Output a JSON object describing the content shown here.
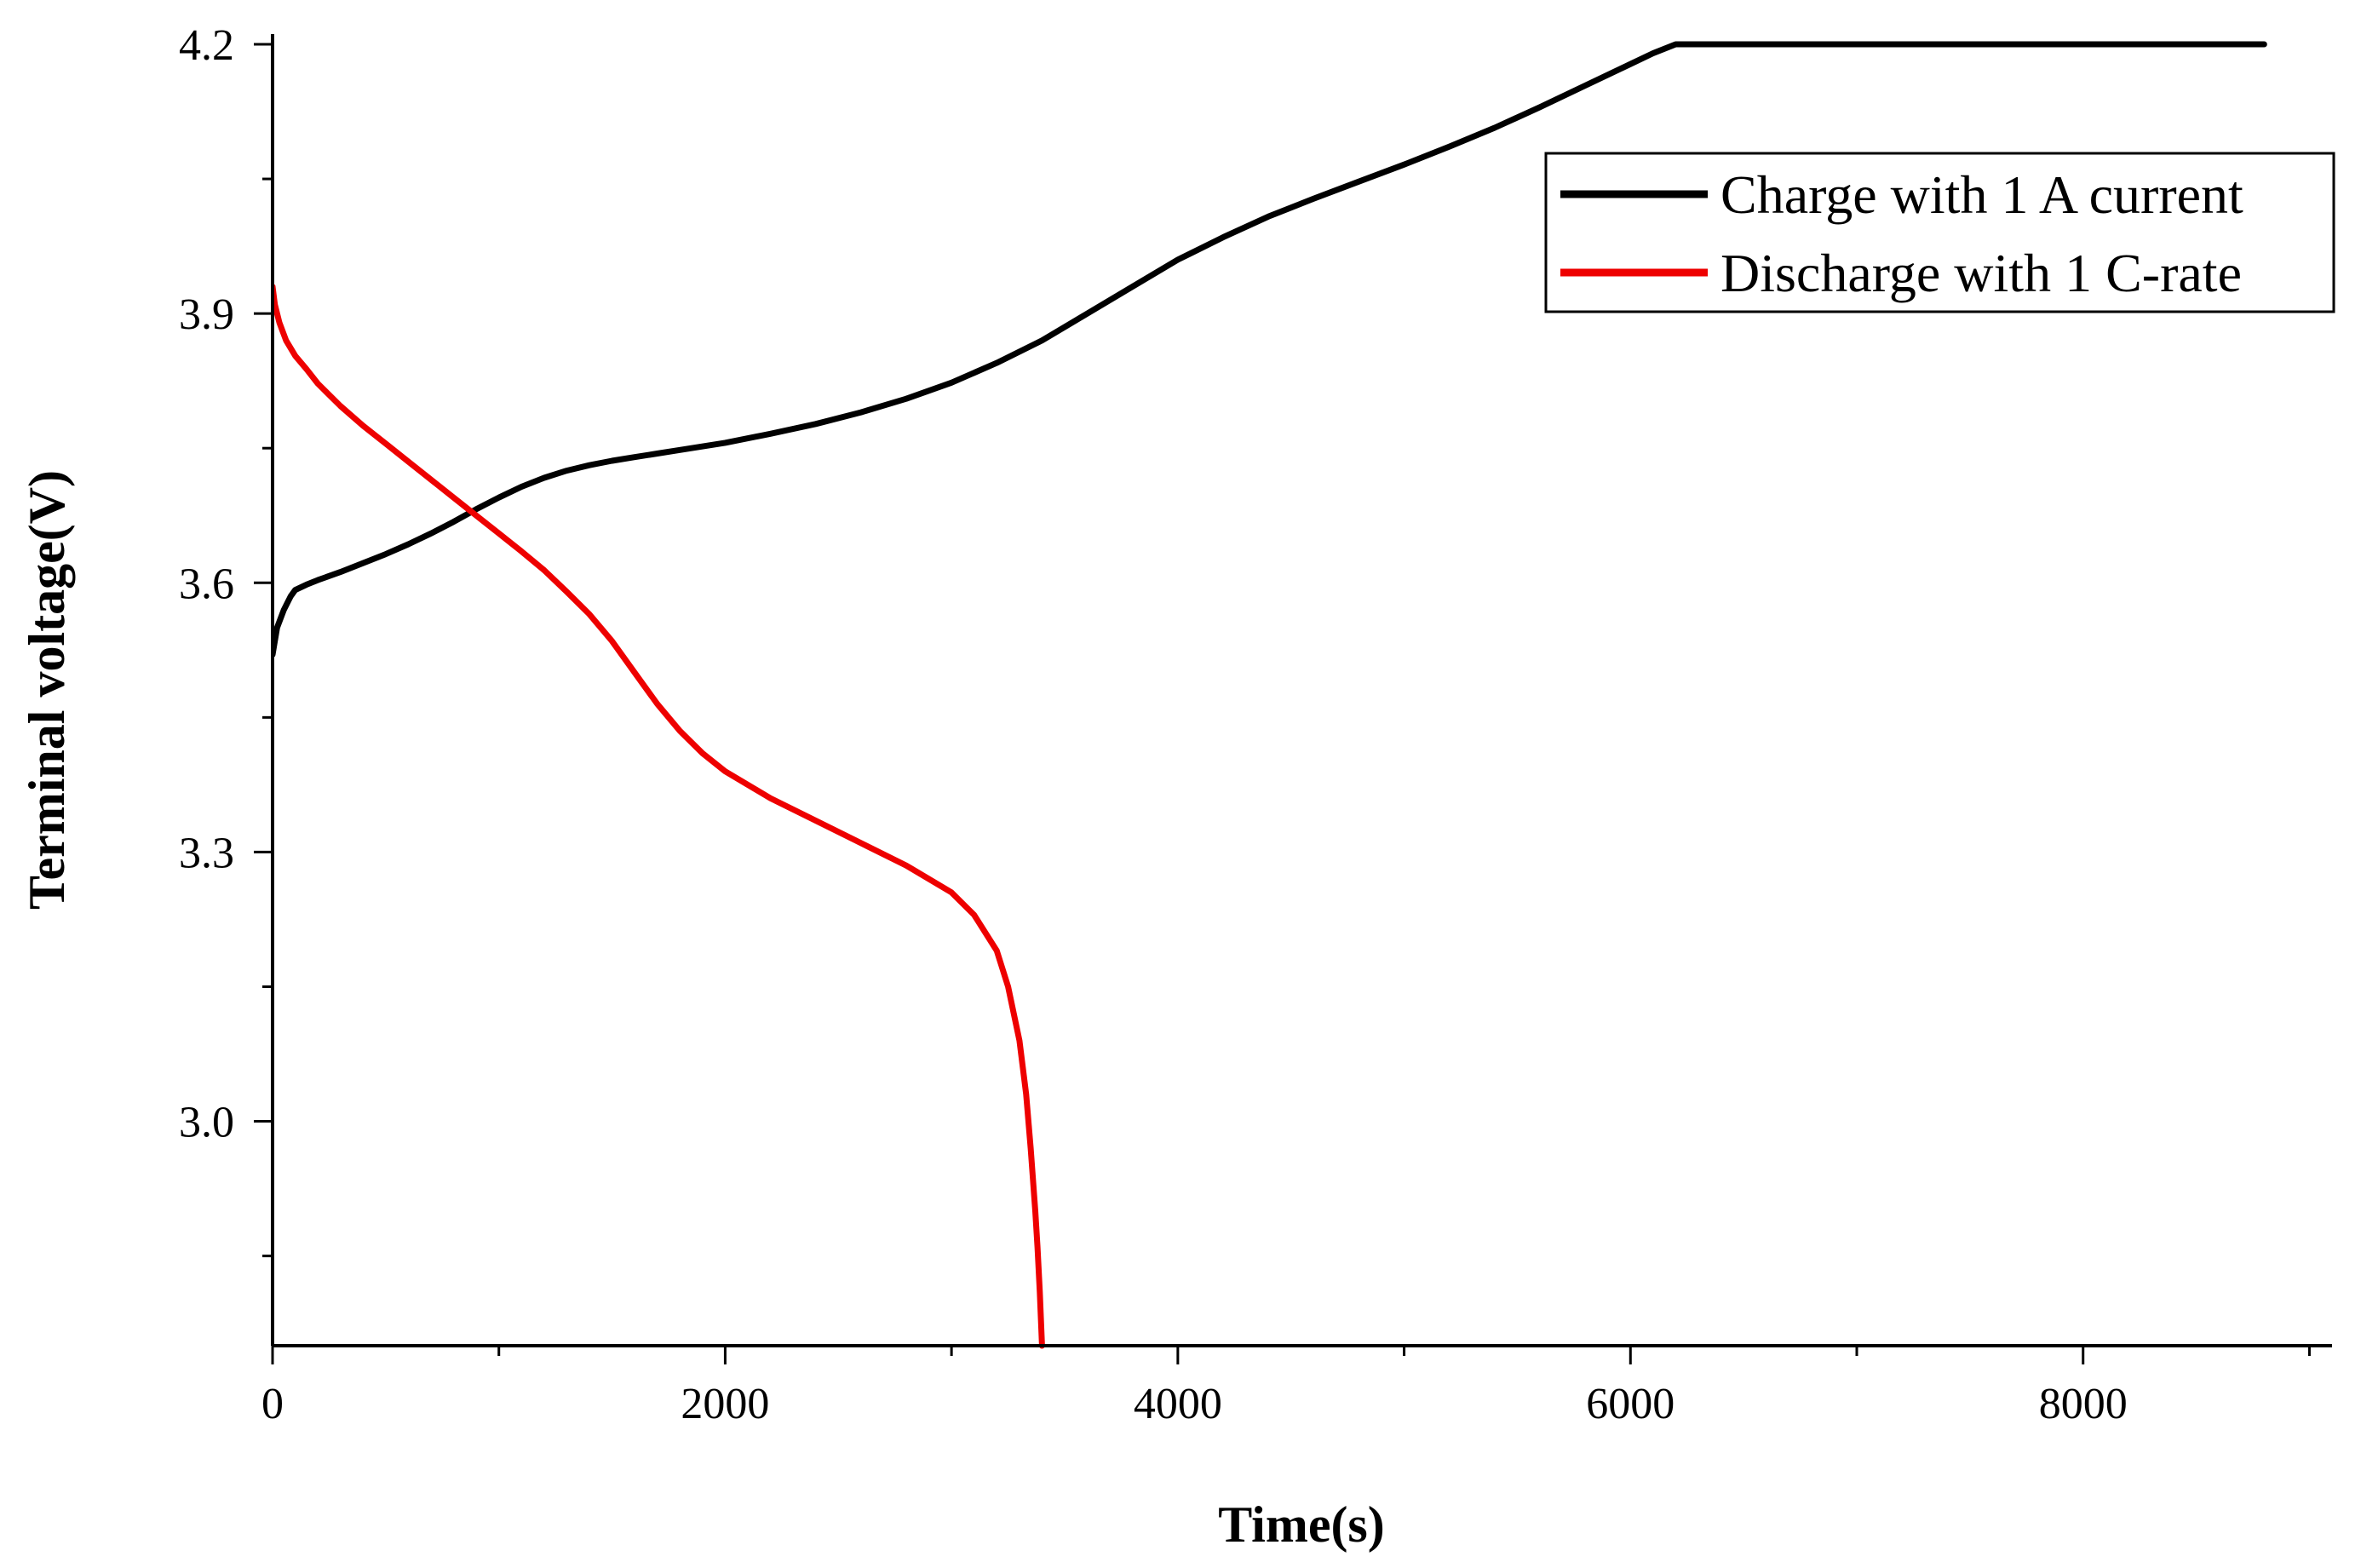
{
  "chart_data": {
    "type": "line",
    "xlabel": "Time(s)",
    "ylabel": "Terminal voltage(V)",
    "xlim": [
      0,
      9100
    ],
    "ylim": [
      2.75,
      4.205
    ],
    "x_ticks": [
      0,
      2000,
      4000,
      6000,
      8000
    ],
    "x_tick_labels": [
      "0",
      "2000",
      "4000",
      "6000",
      "8000"
    ],
    "x_minor_ticks": [
      1000,
      3000,
      5000,
      7000,
      9000
    ],
    "y_ticks": [
      3.0,
      3.3,
      3.6,
      3.9,
      4.2
    ],
    "y_tick_labels": [
      "3.0",
      "3.3",
      "3.6",
      "3.9",
      "4.2"
    ],
    "y_minor_ticks": [
      2.85,
      3.15,
      3.45,
      3.75,
      4.05
    ],
    "legend_position": "top-right",
    "series": [
      {
        "name": "Charge with 1 A current",
        "color": "#000000",
        "x": [
          0,
          20,
          50,
          80,
          100,
          150,
          200,
          300,
          400,
          500,
          600,
          700,
          800,
          900,
          1000,
          1100,
          1200,
          1300,
          1400,
          1500,
          1600,
          1700,
          1800,
          2000,
          2200,
          2400,
          2600,
          2800,
          3000,
          3200,
          3400,
          3600,
          3800,
          4000,
          4200,
          4400,
          4600,
          4800,
          5000,
          5200,
          5400,
          5600,
          5800,
          6000,
          6100,
          6200,
          6500,
          7000,
          7500,
          8000,
          8500,
          8800
        ],
        "y": [
          3.52,
          3.55,
          3.57,
          3.585,
          3.592,
          3.598,
          3.603,
          3.612,
          3.622,
          3.632,
          3.643,
          3.655,
          3.668,
          3.682,
          3.695,
          3.707,
          3.717,
          3.725,
          3.731,
          3.736,
          3.74,
          3.744,
          3.748,
          3.756,
          3.766,
          3.777,
          3.79,
          3.805,
          3.823,
          3.845,
          3.87,
          3.9,
          3.93,
          3.96,
          3.985,
          4.008,
          4.028,
          4.047,
          4.066,
          4.086,
          4.107,
          4.13,
          4.154,
          4.178,
          4.19,
          4.2,
          4.2,
          4.2,
          4.2,
          4.2,
          4.2,
          4.2
        ]
      },
      {
        "name": "Discharge with 1 C-rate",
        "color": "#ee0000",
        "x": [
          0,
          10,
          30,
          60,
          100,
          150,
          200,
          300,
          400,
          500,
          600,
          700,
          800,
          900,
          1000,
          1100,
          1200,
          1300,
          1400,
          1500,
          1600,
          1700,
          1800,
          1900,
          2000,
          2200,
          2400,
          2600,
          2800,
          3000,
          3100,
          3200,
          3250,
          3300,
          3330,
          3350,
          3370,
          3380,
          3390,
          3395,
          3400
        ],
        "y": [
          3.93,
          3.91,
          3.89,
          3.87,
          3.853,
          3.838,
          3.822,
          3.797,
          3.775,
          3.755,
          3.735,
          3.715,
          3.695,
          3.675,
          3.655,
          3.635,
          3.614,
          3.59,
          3.565,
          3.535,
          3.5,
          3.465,
          3.435,
          3.41,
          3.39,
          3.36,
          3.335,
          3.31,
          3.285,
          3.255,
          3.23,
          3.19,
          3.15,
          3.09,
          3.03,
          2.97,
          2.9,
          2.86,
          2.81,
          2.78,
          2.75
        ]
      }
    ]
  }
}
